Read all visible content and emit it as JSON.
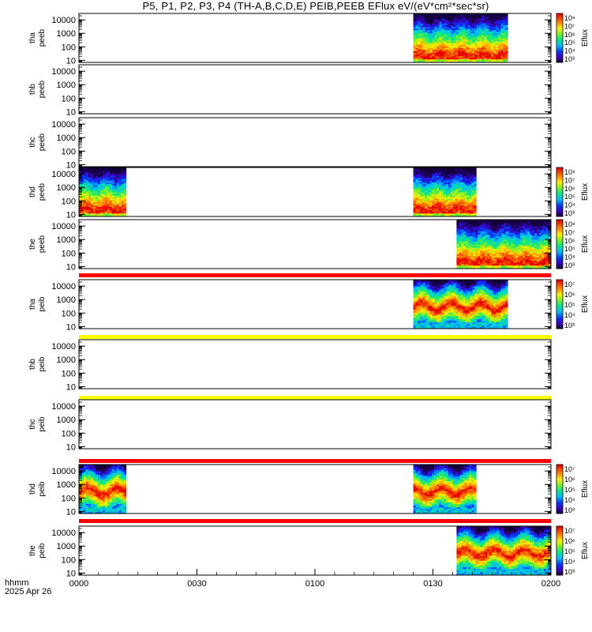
{
  "title": "P5, P1, P2, P3, P4 (TH-A,B,C,D,E) PEIB,PEEB EFlux eV/(eV*cm²*sec*sr)",
  "chart_data": {
    "type": "heatmap",
    "x_axis": {
      "label_line1": "hhmm",
      "label_line2": "2025 Apr 26",
      "ticks": [
        "0000",
        "0030",
        "0100",
        "0130",
        "0200"
      ],
      "range_minutes": [
        0,
        120
      ]
    },
    "y_axis": {
      "scale": "log",
      "range_eV": [
        7,
        30000
      ],
      "ticks": [
        {
          "value": 10,
          "label": "10"
        },
        {
          "value": 100,
          "label": "100"
        },
        {
          "value": 1000,
          "label": "1000"
        },
        {
          "value": 10000,
          "label": "10000"
        }
      ]
    },
    "colorbar_label": "Eflux",
    "panels": [
      {
        "probe": "tha",
        "species": "peeb",
        "intervals_min": [
          [
            85,
            109
          ]
        ],
        "cbar": [
          "10⁸",
          "10⁷",
          "10⁶",
          "10⁵",
          "10⁴",
          "10³"
        ],
        "peak_low": true
      },
      {
        "probe": "thb",
        "species": "peeb",
        "intervals_min": [],
        "cbar": null
      },
      {
        "probe": "thc",
        "species": "peeb",
        "intervals_min": [],
        "cbar": null
      },
      {
        "probe": "thd",
        "species": "peeb",
        "intervals_min": [
          [
            0,
            12
          ],
          [
            85,
            101
          ]
        ],
        "cbar": [
          "10⁸",
          "10⁷",
          "10⁶",
          "10⁵",
          "10⁴",
          "10³"
        ],
        "peak_low": true
      },
      {
        "probe": "the",
        "species": "peeb",
        "intervals_min": [
          [
            96,
            120
          ]
        ],
        "cbar": [
          "10⁸",
          "10⁷",
          "10⁶",
          "10⁵",
          "10⁴",
          "10³"
        ],
        "peak_low": true,
        "band_after": "red"
      },
      {
        "probe": "tha",
        "species": "peib",
        "intervals_min": [
          [
            85,
            109
          ]
        ],
        "cbar": [
          "10⁷",
          "10⁶",
          "10⁵",
          "10⁴",
          "10³"
        ],
        "peak_low": false,
        "band_after": "yellow"
      },
      {
        "probe": "thb",
        "species": "peib",
        "intervals_min": [],
        "cbar": null,
        "band_after": "yellow"
      },
      {
        "probe": "thc",
        "species": "peib",
        "intervals_min": [],
        "cbar": null,
        "band_after": "red"
      },
      {
        "probe": "thd",
        "species": "peib",
        "intervals_min": [
          [
            0,
            12
          ],
          [
            85,
            101
          ]
        ],
        "cbar": [
          "10⁷",
          "10⁶",
          "10⁵",
          "10⁴",
          "10³"
        ],
        "peak_low": false,
        "band_after": "red"
      },
      {
        "probe": "the",
        "species": "peib",
        "intervals_min": [
          [
            96,
            120
          ]
        ],
        "cbar": [
          "10⁷",
          "10⁶",
          "10⁵",
          "10⁴",
          "10³"
        ],
        "peak_low": false
      }
    ]
  }
}
